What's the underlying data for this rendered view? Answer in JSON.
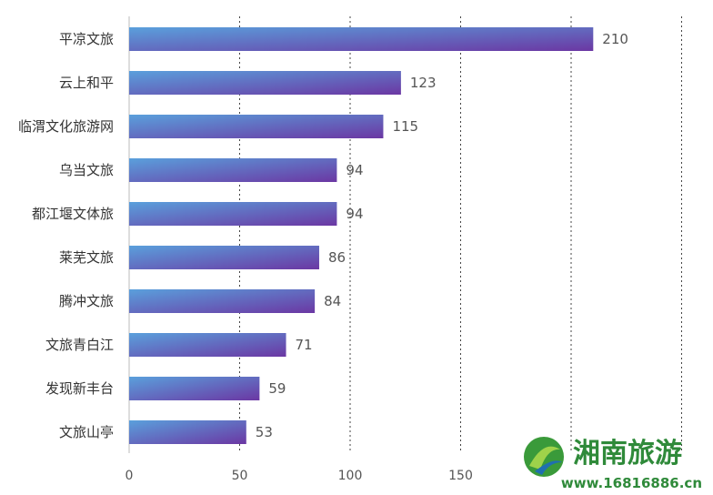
{
  "chart_data": {
    "type": "bar",
    "orientation": "horizontal",
    "categories": [
      "平凉文旅",
      "云上和平",
      "临渭文化旅游网",
      "乌当文旅",
      "都江堰文体旅",
      "莱芜文旅",
      "腾冲文旅",
      "文旅青白江",
      "发现新丰台",
      "文旅山亭"
    ],
    "values": [
      210,
      123,
      115,
      94,
      94,
      86,
      84,
      71,
      59,
      53
    ],
    "xticks": [
      "0",
      "50",
      "100",
      "150"
    ],
    "xlim": [
      0,
      250
    ],
    "grid": "vertical dotted",
    "colors": {
      "bar_start": "#5a9fdc",
      "bar_end": "#6a3aa6",
      "text": "#333333",
      "grid": "#444444"
    }
  },
  "watermark": {
    "url": "www.16816886.cn"
  }
}
